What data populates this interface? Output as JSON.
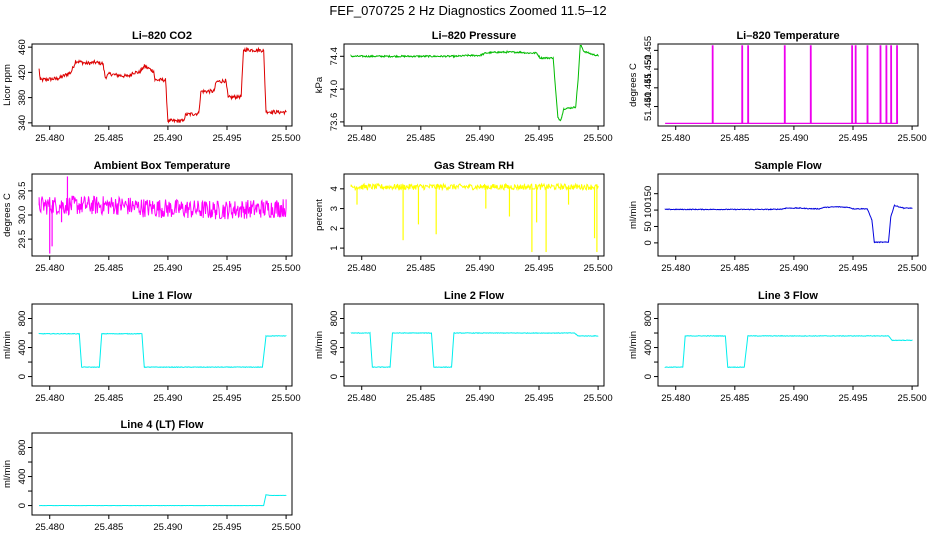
{
  "page_title": "FEF_070725  2 Hz Diagnostics Zoomed 11.5–12",
  "chart_data": [
    {
      "type": "line",
      "title": "Li–820 CO2",
      "ylabel": "Licor ppm",
      "xlabel": "",
      "xlim": [
        25.4785,
        25.5005
      ],
      "ylim": [
        335,
        465
      ],
      "xticks": [
        25.48,
        25.485,
        25.49,
        25.495,
        25.5
      ],
      "xtick_labels": [
        "25.480",
        "25.485",
        "25.490",
        "25.495",
        "25.500"
      ],
      "yticks": [
        340,
        380,
        420,
        460
      ],
      "ytick_labels": [
        "340",
        "380",
        "420",
        "460"
      ],
      "color": "#dd0000",
      "noise": 3,
      "spikes": [],
      "x": [
        25.4791,
        25.4792,
        25.4805,
        25.4807,
        25.4818,
        25.4822,
        25.4832,
        25.4838,
        25.4845,
        25.4847,
        25.4851,
        25.4855,
        25.4865,
        25.4869,
        25.487,
        25.4876,
        25.488,
        25.4888,
        25.4889,
        25.4898,
        25.49,
        25.4913,
        25.4915,
        25.4926,
        25.4928,
        25.4939,
        25.4941,
        25.4949,
        25.4951,
        25.4962,
        25.4964,
        25.4981,
        25.4983,
        25.4993,
        25.5
      ],
      "y": [
        425,
        408,
        410,
        410,
        420,
        438,
        434,
        436,
        434,
        412,
        418,
        416,
        414,
        416,
        420,
        420,
        430,
        422,
        408,
        408,
        343,
        343,
        353,
        355,
        390,
        390,
        405,
        407,
        380,
        382,
        456,
        455,
        358,
        357,
        357
      ]
    },
    {
      "type": "line",
      "title": "Li–820 Pressure",
      "ylabel": "kPa",
      "xlabel": "",
      "xlim": [
        25.4785,
        25.5005
      ],
      "ylim": [
        73.55,
        74.55
      ],
      "xticks": [
        25.48,
        25.485,
        25.49,
        25.495,
        25.5
      ],
      "xtick_labels": [
        "25.480",
        "25.485",
        "25.490",
        "25.495",
        "25.500"
      ],
      "yticks": [
        73.6,
        74.0,
        74.4
      ],
      "ytick_labels": [
        "73.6",
        "74.0",
        "74.4"
      ],
      "color": "#00bb00",
      "noise": 0.01,
      "spikes": [],
      "x": [
        25.4791,
        25.488,
        25.489,
        25.4893,
        25.49,
        25.4905,
        25.4915,
        25.4923,
        25.4935,
        25.494,
        25.4948,
        25.4951,
        25.4962,
        25.4964,
        25.4966,
        25.4968,
        25.4969,
        25.4971,
        25.4981,
        25.4983,
        25.4985,
        25.4988,
        25.4996,
        25.5
      ],
      "y": [
        74.4,
        74.4,
        74.41,
        74.41,
        74.41,
        74.44,
        74.45,
        74.45,
        74.45,
        74.44,
        74.44,
        74.38,
        74.38,
        74.0,
        73.65,
        73.62,
        73.65,
        73.76,
        73.78,
        74.1,
        74.55,
        74.46,
        74.42,
        74.41
      ]
    },
    {
      "type": "line",
      "title": "Li–820 Temperature",
      "ylabel": "degrees C",
      "xlabel": "",
      "xlim": [
        25.4785,
        25.5005
      ],
      "ylim": [
        51.4348,
        51.4567
      ],
      "xticks": [
        25.48,
        25.485,
        25.49,
        25.495,
        25.5
      ],
      "xtick_labels": [
        "25.480",
        "25.485",
        "25.490",
        "25.495",
        "25.500"
      ],
      "yticks": [
        51.44,
        51.445,
        51.45,
        51.455
      ],
      "ytick_labels": [
        "51.440",
        "51.445",
        "51.450",
        "51.455"
      ],
      "color": "#ee00ee",
      "noise": 0,
      "spikes": [],
      "x": [
        25.4791,
        25.4831,
        25.4831,
        25.48315,
        25.48316,
        25.4856,
        25.4856,
        25.48565,
        25.48566,
        25.4861,
        25.4861,
        25.48615,
        25.48616,
        25.4892,
        25.4892,
        25.48925,
        25.48926,
        25.4914,
        25.4914,
        25.49145,
        25.49146,
        25.4949,
        25.4949,
        25.49495,
        25.49496,
        25.4952,
        25.4952,
        25.49525,
        25.49526,
        25.4962,
        25.4962,
        25.49625,
        25.49626,
        25.4973,
        25.4973,
        25.49735,
        25.49736,
        25.4978,
        25.4978,
        25.49785,
        25.49786,
        25.4982,
        25.4982,
        25.49825,
        25.49826,
        25.4987,
        25.4987,
        25.49875,
        25.49876,
        25.4988
      ],
      "y": [
        51.4355,
        51.4355,
        51.4562,
        51.4562,
        51.4355,
        51.4355,
        51.4562,
        51.4562,
        51.4355,
        51.4355,
        51.4562,
        51.4562,
        51.4355,
        51.4355,
        51.4562,
        51.4562,
        51.4355,
        51.4355,
        51.4562,
        51.4562,
        51.4355,
        51.4355,
        51.4562,
        51.4562,
        51.4355,
        51.4355,
        51.4562,
        51.4562,
        51.4355,
        51.4355,
        51.4562,
        51.4562,
        51.4355,
        51.4355,
        51.4562,
        51.4562,
        51.4355,
        51.4355,
        51.4562,
        51.4562,
        51.4355,
        51.4355,
        51.4562,
        51.4562,
        51.4355,
        51.4355,
        51.4562,
        51.4562,
        51.4355,
        51.4355
      ]
    },
    {
      "type": "line",
      "title": "Ambient Box Temperature",
      "ylabel": "degrees C",
      "xlabel": "",
      "xlim": [
        25.4785,
        25.5005
      ],
      "ylim": [
        29.15,
        30.85
      ],
      "xticks": [
        25.48,
        25.485,
        25.49,
        25.495,
        25.5
      ],
      "xtick_labels": [
        "25.480",
        "25.485",
        "25.490",
        "25.495",
        "25.500"
      ],
      "yticks": [
        29.5,
        30.0,
        30.5
      ],
      "ytick_labels": [
        "29.5",
        "30.0",
        "30.5"
      ],
      "color": "#ff00ff",
      "noise": 0.2,
      "spikes": [
        [
          25.48,
          29.2
        ],
        [
          25.4802,
          29.35
        ],
        [
          25.4815,
          30.8
        ],
        [
          25.481,
          29.85
        ]
      ],
      "x": [
        25.4791,
        25.486,
        25.488,
        25.494,
        25.5
      ],
      "y": [
        30.2,
        30.2,
        30.15,
        30.1,
        30.15
      ]
    },
    {
      "type": "line",
      "title": "Gas Stream RH",
      "ylabel": "percent",
      "xlabel": "",
      "xlim": [
        25.4785,
        25.5005
      ],
      "ylim": [
        0.6,
        4.75
      ],
      "xticks": [
        25.48,
        25.485,
        25.49,
        25.495,
        25.5
      ],
      "xtick_labels": [
        "25.480",
        "25.485",
        "25.490",
        "25.495",
        "25.500"
      ],
      "yticks": [
        1,
        2,
        3,
        4
      ],
      "ytick_labels": [
        "1",
        "2",
        "3",
        "4"
      ],
      "color": "#ffff00",
      "noise": 0.15,
      "spikes": [
        [
          25.4796,
          3.2
        ],
        [
          25.4835,
          1.4
        ],
        [
          25.4848,
          2.2
        ],
        [
          25.4863,
          1.7
        ],
        [
          25.4905,
          3.0
        ],
        [
          25.4925,
          2.6
        ],
        [
          25.4944,
          0.8
        ],
        [
          25.4948,
          2.3
        ],
        [
          25.4956,
          0.8
        ],
        [
          25.4975,
          3.2
        ],
        [
          25.4997,
          1.5
        ],
        [
          25.4999,
          0.8
        ]
      ],
      "x": [
        25.4791,
        25.5
      ],
      "y": [
        4.1,
        4.1
      ]
    },
    {
      "type": "line",
      "title": "Sample Flow",
      "ylabel": "ml/min",
      "xlabel": "",
      "xlim": [
        25.4785,
        25.5005
      ],
      "ylim": [
        -40,
        210
      ],
      "xticks": [
        25.48,
        25.485,
        25.49,
        25.495,
        25.5
      ],
      "xtick_labels": [
        "25.480",
        "25.485",
        "25.490",
        "25.495",
        "25.500"
      ],
      "yticks": [
        0,
        50,
        100,
        150
      ],
      "ytick_labels": [
        "0",
        "50",
        "100",
        "150"
      ],
      "color": "#0000dd",
      "noise": 1.2,
      "spikes": [],
      "x": [
        25.4791,
        25.488,
        25.489,
        25.4893,
        25.4905,
        25.4915,
        25.4922,
        25.4925,
        25.4937,
        25.4947,
        25.495,
        25.4962,
        25.4966,
        25.4968,
        25.498,
        25.4982,
        25.4985,
        25.4993,
        25.5
      ],
      "y": [
        102,
        102,
        103,
        106,
        106,
        104,
        104,
        108,
        110,
        108,
        104,
        104,
        70,
        2,
        2,
        80,
        114,
        106,
        106
      ]
    },
    {
      "type": "line",
      "title": "Line 1 Flow",
      "ylabel": "ml/min",
      "xlabel": "",
      "xlim": [
        25.4785,
        25.5005
      ],
      "ylim": [
        -130,
        1000
      ],
      "xticks": [
        25.48,
        25.485,
        25.49,
        25.495,
        25.5
      ],
      "xtick_labels": [
        "25.480",
        "25.485",
        "25.490",
        "25.495",
        "25.500"
      ],
      "yticks": [
        0,
        200,
        400,
        600,
        800
      ],
      "ytick_labels": [
        "0",
        "",
        "400",
        "",
        "800"
      ],
      "color": "#00eeee",
      "noise": 4,
      "spikes": [],
      "x": [
        25.4791,
        25.4825,
        25.4827,
        25.4842,
        25.4844,
        25.4878,
        25.488,
        25.498,
        25.4983,
        25.5
      ],
      "y": [
        590,
        590,
        130,
        130,
        590,
        590,
        130,
        130,
        560,
        560
      ]
    },
    {
      "type": "line",
      "title": "Line 2 Flow",
      "ylabel": "ml/min",
      "xlabel": "",
      "xlim": [
        25.4785,
        25.5005
      ],
      "ylim": [
        -130,
        1000
      ],
      "xticks": [
        25.48,
        25.485,
        25.49,
        25.495,
        25.5
      ],
      "xtick_labels": [
        "25.480",
        "25.485",
        "25.490",
        "25.495",
        "25.500"
      ],
      "yticks": [
        0,
        200,
        400,
        600,
        800
      ],
      "ytick_labels": [
        "0",
        "",
        "400",
        "",
        "800"
      ],
      "color": "#00eeee",
      "noise": 4,
      "spikes": [],
      "x": [
        25.4791,
        25.4807,
        25.4809,
        25.4824,
        25.4826,
        25.4859,
        25.4861,
        25.4876,
        25.4878,
        25.498,
        25.4983,
        25.5
      ],
      "y": [
        600,
        600,
        130,
        130,
        600,
        600,
        130,
        130,
        600,
        600,
        560,
        560
      ]
    },
    {
      "type": "line",
      "title": "Line 3 Flow",
      "ylabel": "ml/min",
      "xlabel": "",
      "xlim": [
        25.4785,
        25.5005
      ],
      "ylim": [
        -130,
        1000
      ],
      "xticks": [
        25.48,
        25.485,
        25.49,
        25.495,
        25.5
      ],
      "xtick_labels": [
        "25.480",
        "25.485",
        "25.490",
        "25.495",
        "25.500"
      ],
      "yticks": [
        0,
        200,
        400,
        600,
        800
      ],
      "ytick_labels": [
        "0",
        "",
        "400",
        "",
        "800"
      ],
      "color": "#00eeee",
      "noise": 4,
      "spikes": [],
      "x": [
        25.4791,
        25.4806,
        25.4808,
        25.4842,
        25.4844,
        25.4858,
        25.4861,
        25.498,
        25.4983,
        25.5
      ],
      "y": [
        130,
        130,
        560,
        560,
        130,
        130,
        560,
        560,
        500,
        500
      ]
    },
    {
      "type": "line",
      "title": "Line 4 (LT) Flow",
      "ylabel": "ml/min",
      "xlabel": "",
      "xlim": [
        25.4785,
        25.5005
      ],
      "ylim": [
        -130,
        1000
      ],
      "xticks": [
        25.48,
        25.485,
        25.49,
        25.495,
        25.5
      ],
      "xtick_labels": [
        "25.480",
        "25.485",
        "25.490",
        "25.495",
        "25.500"
      ],
      "yticks": [
        0,
        200,
        400,
        600,
        800
      ],
      "ytick_labels": [
        "0",
        "",
        "400",
        "",
        "800"
      ],
      "color": "#00eeee",
      "noise": 1,
      "spikes": [],
      "x": [
        25.4791,
        25.4981,
        25.4983,
        25.4986,
        25.5
      ],
      "y": [
        0,
        0,
        150,
        140,
        140
      ]
    }
  ]
}
